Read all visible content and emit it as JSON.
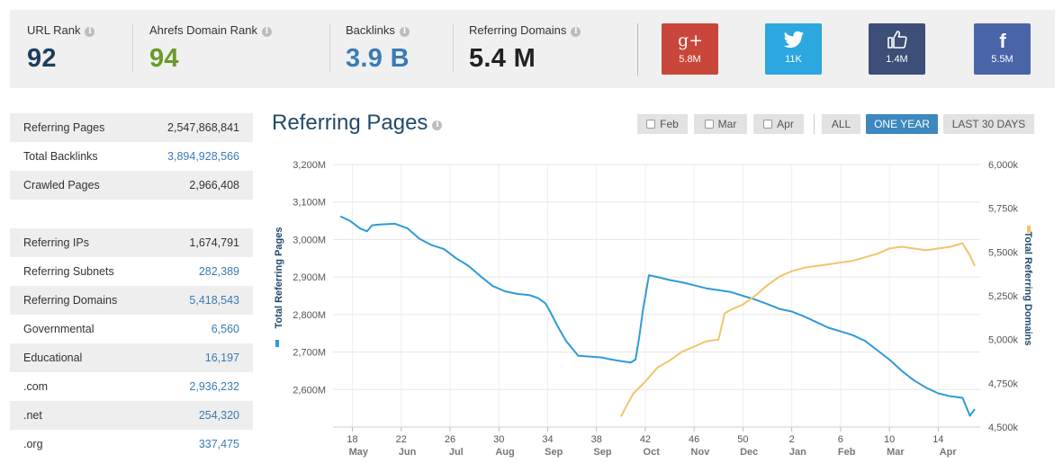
{
  "metrics": {
    "url_rank": {
      "label": "URL Rank",
      "value": "92",
      "color": "#1c3e5e"
    },
    "domain_rank": {
      "label": "Ahrefs Domain Rank",
      "value": "94",
      "color": "#6a9a2a"
    },
    "backlinks": {
      "label": "Backlinks",
      "value": "3.9 B",
      "color": "#3a7bb5"
    },
    "referring_domains": {
      "label": "Referring Domains",
      "value": "5.4 M",
      "color": "#222222"
    }
  },
  "social": [
    {
      "name": "google-plus",
      "icon": "g+",
      "count": "5.8M",
      "color": "#c8473a"
    },
    {
      "name": "twitter",
      "icon": "twitter-bird",
      "count": "11K",
      "color": "#2ca7e0"
    },
    {
      "name": "facebook-like",
      "icon": "thumbs-up",
      "count": "1.4M",
      "color": "#3d4f78"
    },
    {
      "name": "facebook",
      "icon": "f",
      "count": "5.5M",
      "color": "#4a64a8"
    }
  ],
  "stats": [
    {
      "name": "Referring Pages",
      "value": "2,547,868,841",
      "link": false
    },
    {
      "name": "Total Backlinks",
      "value": "3,894,928,566",
      "link": true
    },
    {
      "name": "Crawled Pages",
      "value": "2,966,408",
      "link": false
    },
    {
      "name": "",
      "value": "",
      "link": false
    },
    {
      "name": "Referring IPs",
      "value": "1,674,791",
      "link": false
    },
    {
      "name": "Referring Subnets",
      "value": "282,389",
      "link": true
    },
    {
      "name": "Referring Domains",
      "value": "5,418,543",
      "link": true
    },
    {
      "name": "Governmental",
      "value": "6,560",
      "link": true
    },
    {
      "name": "Educational",
      "value": "16,197",
      "link": true
    },
    {
      "name": ".com",
      "value": "2,936,232",
      "link": true
    },
    {
      "name": ".net",
      "value": "254,320",
      "link": true
    },
    {
      "name": ".org",
      "value": "337,475",
      "link": true
    }
  ],
  "chart_title": "Referring Pages",
  "controls": {
    "checkboxes": [
      "Feb",
      "Mar",
      "Apr"
    ],
    "ranges": [
      "ALL",
      "ONE YEAR",
      "LAST 30 DAYS"
    ],
    "active_range": "ONE YEAR"
  },
  "chart_data": {
    "type": "line",
    "title": "Referring Pages",
    "ylabel_left": "Total Referring Pages",
    "ylabel_right": "Total Referring Domains",
    "left_ticks": [
      "2,600M",
      "2,700M",
      "2,800M",
      "2,900M",
      "3,000M",
      "3,100M",
      "3,200M"
    ],
    "right_ticks": [
      "4,500k",
      "4,750k",
      "5,000k",
      "5,250k",
      "5,500k",
      "5,750k",
      "6,000k"
    ],
    "ylim_left": [
      2500,
      3200
    ],
    "ylim_right": [
      4500,
      6000
    ],
    "x_week_ticks": [
      "18",
      "22",
      "26",
      "30",
      "34",
      "38",
      "42",
      "46",
      "50",
      "2",
      "6",
      "10",
      "14"
    ],
    "x_month_ticks": [
      "May",
      "Jun",
      "Jul",
      "Aug",
      "Sep",
      "Sep",
      "Oct",
      "Nov",
      "Dec",
      "Jan",
      "Feb",
      "Mar",
      "Apr"
    ],
    "xlim": [
      0,
      52
    ],
    "series": [
      {
        "name": "Total Referring Pages",
        "axis": "left",
        "color": "#2e9bd6",
        "x": [
          0,
          0.8,
          1.6,
          2.2,
          2.6,
          3.2,
          4.5,
          5.5,
          6.5,
          7.5,
          8.5,
          9.5,
          10.5,
          11.5,
          12.5,
          13.5,
          14.5,
          15.5,
          16.2,
          16.8,
          17.2,
          17.8,
          18.5,
          19.5,
          20.5,
          21.5,
          22.2,
          23,
          23.8,
          24.2,
          24.5,
          24.8,
          25.3,
          26,
          27,
          28,
          29,
          30,
          31,
          32,
          33,
          34,
          35,
          36,
          37,
          38,
          39,
          40,
          41,
          42,
          43,
          44,
          45,
          46,
          47,
          48,
          49,
          50,
          51,
          51.6,
          52
        ],
        "values": [
          3062,
          3050,
          3030,
          3022,
          3038,
          3040,
          3042,
          3030,
          3002,
          2985,
          2975,
          2950,
          2930,
          2902,
          2876,
          2862,
          2855,
          2852,
          2844,
          2830,
          2808,
          2770,
          2730,
          2690,
          2688,
          2685,
          2680,
          2676,
          2672,
          2680,
          2740,
          2810,
          2905,
          2900,
          2892,
          2886,
          2878,
          2870,
          2865,
          2860,
          2850,
          2840,
          2828,
          2815,
          2808,
          2795,
          2780,
          2765,
          2755,
          2745,
          2730,
          2705,
          2680,
          2650,
          2625,
          2605,
          2590,
          2582,
          2578,
          2530,
          2548
        ]
      },
      {
        "name": "Total Referring Domains",
        "axis": "right",
        "color": "#f2c46b",
        "x": [
          23,
          24,
          25,
          26,
          27,
          28,
          29,
          30,
          31,
          31.5,
          32,
          33,
          34,
          35,
          36,
          37,
          38,
          39,
          40,
          41,
          42,
          43,
          44,
          45,
          46,
          47,
          48,
          49,
          50,
          51,
          51.6,
          52
        ],
        "values": [
          4560,
          4690,
          4760,
          4840,
          4880,
          4930,
          4960,
          4990,
          5000,
          5150,
          5170,
          5200,
          5250,
          5310,
          5360,
          5390,
          5410,
          5420,
          5430,
          5440,
          5450,
          5470,
          5490,
          5520,
          5530,
          5520,
          5510,
          5520,
          5530,
          5550,
          5480,
          5420
        ]
      }
    ]
  }
}
